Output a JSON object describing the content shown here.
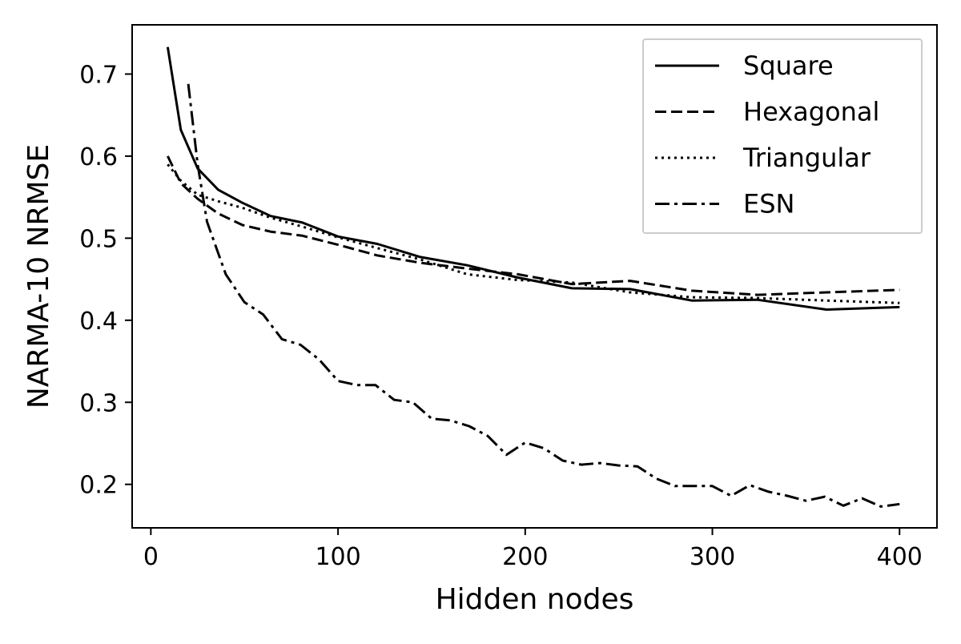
{
  "chart_data": {
    "type": "line",
    "title": "",
    "xlabel": "Hidden nodes",
    "ylabel": "NARMA-10 NRMSE",
    "xlim": [
      -10,
      420
    ],
    "ylim": [
      0.147,
      0.76
    ],
    "xticks": [
      0,
      100,
      200,
      300,
      400
    ],
    "yticks": [
      0.2,
      0.3,
      0.4,
      0.5,
      0.6,
      0.7
    ],
    "xtick_labels": [
      "0",
      "100",
      "200",
      "300",
      "400"
    ],
    "ytick_labels": [
      "0.2",
      "0.3",
      "0.4",
      "0.5",
      "0.6",
      "0.7"
    ],
    "grid": false,
    "legend_position": "top-right",
    "line_color": "#000000",
    "series": [
      {
        "name": "Square",
        "style": "solid",
        "x": [
          9,
          16,
          25,
          36,
          49,
          64,
          81,
          100,
          121,
          144,
          169,
          196,
          225,
          256,
          289,
          324,
          361,
          400
        ],
        "y": [
          0.733,
          0.632,
          0.585,
          0.559,
          0.543,
          0.527,
          0.519,
          0.502,
          0.493,
          0.477,
          0.467,
          0.452,
          0.439,
          0.438,
          0.424,
          0.425,
          0.413,
          0.416
        ]
      },
      {
        "name": "Hexagonal",
        "style": "dashed",
        "x": [
          9,
          16,
          25,
          36,
          49,
          64,
          81,
          100,
          121,
          144,
          169,
          196,
          225,
          256,
          289,
          324,
          361,
          400
        ],
        "y": [
          0.6,
          0.567,
          0.548,
          0.53,
          0.516,
          0.508,
          0.503,
          0.492,
          0.479,
          0.47,
          0.463,
          0.456,
          0.444,
          0.448,
          0.436,
          0.431,
          0.434,
          0.437
        ]
      },
      {
        "name": "Triangular",
        "style": "dotted",
        "x": [
          9,
          16,
          25,
          36,
          49,
          64,
          81,
          100,
          121,
          144,
          169,
          196,
          225,
          256,
          289,
          324,
          361,
          400
        ],
        "y": [
          0.59,
          0.57,
          0.553,
          0.545,
          0.537,
          0.525,
          0.514,
          0.501,
          0.488,
          0.474,
          0.456,
          0.449,
          0.446,
          0.434,
          0.428,
          0.427,
          0.424,
          0.421
        ]
      },
      {
        "name": "ESN",
        "style": "dashdot",
        "x": [
          20,
          25,
          30,
          40,
          50,
          60,
          70,
          80,
          90,
          100,
          110,
          120,
          130,
          140,
          150,
          160,
          170,
          180,
          190,
          200,
          210,
          220,
          230,
          240,
          250,
          260,
          270,
          280,
          290,
          300,
          310,
          320,
          330,
          340,
          350,
          360,
          370,
          380,
          390,
          400
        ],
        "y": [
          0.688,
          0.59,
          0.52,
          0.456,
          0.422,
          0.407,
          0.377,
          0.37,
          0.352,
          0.326,
          0.321,
          0.321,
          0.303,
          0.3,
          0.28,
          0.278,
          0.271,
          0.259,
          0.236,
          0.251,
          0.244,
          0.229,
          0.224,
          0.226,
          0.223,
          0.222,
          0.207,
          0.198,
          0.198,
          0.198,
          0.186,
          0.199,
          0.191,
          0.186,
          0.18,
          0.185,
          0.174,
          0.183,
          0.173,
          0.176
        ]
      }
    ]
  }
}
